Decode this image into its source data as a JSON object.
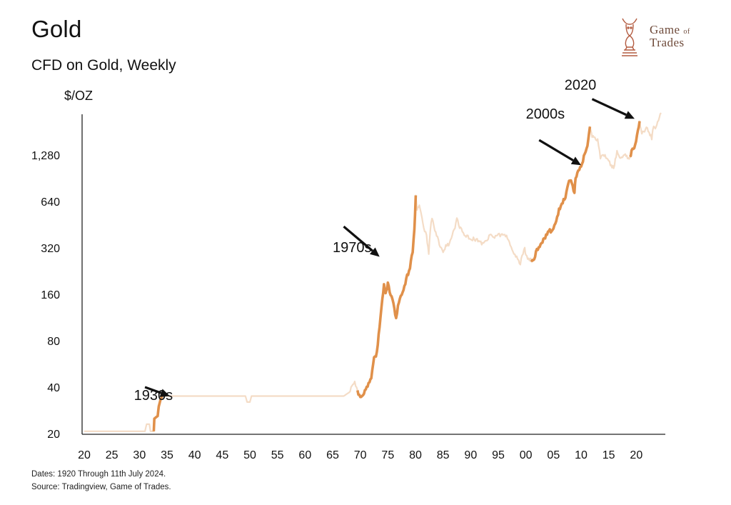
{
  "header": {
    "title": "Gold",
    "subtitle": "CFD on Gold, Weekly"
  },
  "logo": {
    "line1_a": "Game",
    "line1_b": "of",
    "line2": "Trades"
  },
  "footer": {
    "dates": "Dates: 1920 Through 11th July 2024.",
    "source": "Source: Tradingview, Game of Trades."
  },
  "colors": {
    "highlight": "#e0904a",
    "base": "#f4dcc6",
    "axis": "#222222",
    "arrow": "#111111"
  },
  "chart_data": {
    "type": "line",
    "title": "Gold",
    "subtitle": "CFD on Gold, Weekly",
    "ylabel": "$/OZ",
    "xlabel": "",
    "yscale": "log2",
    "ylim": [
      20,
      2600
    ],
    "xlim": [
      1920,
      2025
    ],
    "y_ticks": [
      20,
      40,
      80,
      160,
      320,
      640,
      1280
    ],
    "y_tick_labels": [
      "20",
      "40",
      "80",
      "160",
      "320",
      "640",
      "1,280"
    ],
    "x_ticks": [
      1920,
      1925,
      1930,
      1935,
      1940,
      1945,
      1950,
      1955,
      1960,
      1965,
      1970,
      1975,
      1980,
      1985,
      1990,
      1995,
      2000,
      2005,
      2010,
      2015,
      2020
    ],
    "x_tick_labels": [
      "20",
      "25",
      "30",
      "35",
      "40",
      "45",
      "50",
      "55",
      "60",
      "65",
      "70",
      "75",
      "80",
      "85",
      "90",
      "95",
      "00",
      "05",
      "10",
      "15",
      "20"
    ],
    "series": [
      {
        "name": "Gold price",
        "points": [
          [
            1920,
            20.7
          ],
          [
            1930,
            20.7
          ],
          [
            1931,
            20.7
          ],
          [
            1931.3,
            23
          ],
          [
            1931.8,
            23
          ],
          [
            1932,
            20.7
          ],
          [
            1932.6,
            20.7
          ],
          [
            1932.7,
            25
          ],
          [
            1933.3,
            26
          ],
          [
            1933.5,
            30
          ],
          [
            1933.8,
            33
          ],
          [
            1934.1,
            35
          ],
          [
            1940,
            35
          ],
          [
            1948,
            35
          ],
          [
            1949.2,
            35
          ],
          [
            1949.5,
            32
          ],
          [
            1950,
            32
          ],
          [
            1950.3,
            35
          ],
          [
            1960,
            35
          ],
          [
            1967,
            35
          ],
          [
            1968,
            37
          ],
          [
            1968.5,
            41
          ],
          [
            1969,
            43
          ],
          [
            1969.5,
            37
          ],
          [
            1970,
            35
          ],
          [
            1971,
            38
          ],
          [
            1972,
            46
          ],
          [
            1972.5,
            62
          ],
          [
            1973,
            66
          ],
          [
            1973.5,
            100
          ],
          [
            1974,
            150
          ],
          [
            1974.3,
            185
          ],
          [
            1974.6,
            160
          ],
          [
            1975,
            185
          ],
          [
            1975.5,
            160
          ],
          [
            1976,
            140
          ],
          [
            1976.5,
            110
          ],
          [
            1977,
            145
          ],
          [
            1977.5,
            160
          ],
          [
            1978,
            180
          ],
          [
            1978.5,
            210
          ],
          [
            1979,
            240
          ],
          [
            1979.5,
            300
          ],
          [
            1979.8,
            420
          ],
          [
            1980.05,
            690
          ],
          [
            1980.3,
            550
          ],
          [
            1980.7,
            620
          ],
          [
            1981,
            550
          ],
          [
            1981.5,
            430
          ],
          [
            1982,
            380
          ],
          [
            1982.4,
            300
          ],
          [
            1982.7,
            430
          ],
          [
            1983,
            500
          ],
          [
            1983.5,
            410
          ],
          [
            1984,
            370
          ],
          [
            1984.5,
            330
          ],
          [
            1985,
            300
          ],
          [
            1985.5,
            330
          ],
          [
            1986,
            340
          ],
          [
            1987,
            420
          ],
          [
            1987.5,
            490
          ],
          [
            1988,
            440
          ],
          [
            1988.5,
            410
          ],
          [
            1989,
            380
          ],
          [
            1990,
            370
          ],
          [
            1991,
            360
          ],
          [
            1992,
            340
          ],
          [
            1993,
            350
          ],
          [
            1993.5,
            400
          ],
          [
            1994,
            380
          ],
          [
            1995,
            385
          ],
          [
            1996,
            390
          ],
          [
            1996.5,
            380
          ],
          [
            1997,
            340
          ],
          [
            1998,
            290
          ],
          [
            1999,
            255
          ],
          [
            1999.8,
            320
          ],
          [
            2000,
            285
          ],
          [
            2001,
            265
          ],
          [
            2001.5,
            270
          ],
          [
            2002,
            310
          ],
          [
            2003,
            350
          ],
          [
            2004,
            400
          ],
          [
            2005,
            430
          ],
          [
            2006,
            560
          ],
          [
            2006.5,
            630
          ],
          [
            2007,
            660
          ],
          [
            2008,
            900
          ],
          [
            2008.8,
            730
          ],
          [
            2009,
            900
          ],
          [
            2010,
            1100
          ],
          [
            2011,
            1400
          ],
          [
            2011.6,
            1900
          ],
          [
            2012,
            1700
          ],
          [
            2013,
            1600
          ],
          [
            2013.5,
            1250
          ],
          [
            2014,
            1300
          ],
          [
            2015,
            1150
          ],
          [
            2015.9,
            1060
          ],
          [
            2016.5,
            1350
          ],
          [
            2017,
            1200
          ],
          [
            2018,
            1300
          ],
          [
            2018.7,
            1180
          ],
          [
            2019,
            1300
          ],
          [
            2019.8,
            1500
          ],
          [
            2020.6,
            2070
          ],
          [
            2021,
            1800
          ],
          [
            2022,
            1900
          ],
          [
            2022.8,
            1650
          ],
          [
            2023,
            1900
          ],
          [
            2023.6,
            1950
          ],
          [
            2024,
            2100
          ],
          [
            2024.5,
            2400
          ]
        ]
      }
    ],
    "highlights": [
      {
        "label": "1930s",
        "start": 1932.5,
        "end": 1934.3
      },
      {
        "label": "1970s",
        "start": 1969.5,
        "end": 1980.1
      },
      {
        "label": "2000s",
        "start": 2001,
        "end": 2011.6
      },
      {
        "label": "2020",
        "start": 2018.8,
        "end": 2020.6
      }
    ],
    "annotations": [
      {
        "text": "1930s",
        "x": 1929,
        "y": 33,
        "arrow_from": [
          1931,
          40
        ],
        "arrow_to": [
          1935.5,
          35
        ]
      },
      {
        "text": "1970s",
        "x": 1965,
        "y": 300,
        "arrow_from": [
          1967,
          440
        ],
        "arrow_to": [
          1973.5,
          280
        ]
      },
      {
        "text": "2000s",
        "x": 2000,
        "y": 2200,
        "arrow_from": [
          2002.4,
          1600
        ],
        "arrow_to": [
          2010,
          1100
        ]
      },
      {
        "text": "2020",
        "x": 2007,
        "y": 3400,
        "arrow_from": [
          2012,
          2950
        ],
        "arrow_to": [
          2019.7,
          2200
        ]
      }
    ]
  }
}
